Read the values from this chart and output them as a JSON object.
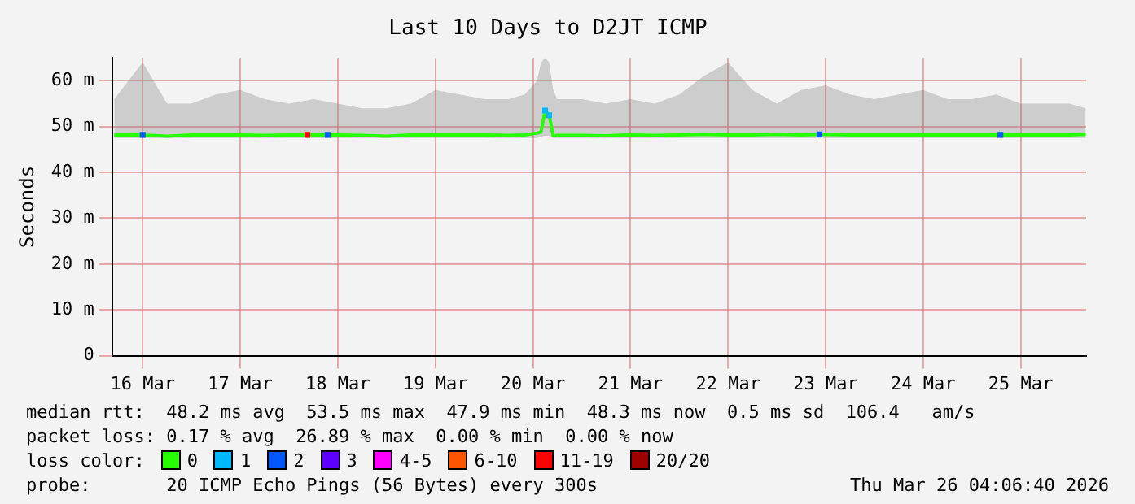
{
  "chart_data": {
    "type": "line",
    "title": "Last 10 Days to D2JT ICMP",
    "ylabel": "Seconds",
    "xlim": [
      "2026-03-16T04:30",
      "2026-03-26T04:06"
    ],
    "xticks": [
      {
        "value": "2026-03-16T12:00",
        "label": "16 Mar"
      },
      {
        "value": "2026-03-17T12:00",
        "label": "17 Mar"
      },
      {
        "value": "2026-03-18T12:00",
        "label": "18 Mar"
      },
      {
        "value": "2026-03-19T12:00",
        "label": "19 Mar"
      },
      {
        "value": "2026-03-20T12:00",
        "label": "20 Mar"
      },
      {
        "value": "2026-03-21T12:00",
        "label": "21 Mar"
      },
      {
        "value": "2026-03-22T12:00",
        "label": "22 Mar"
      },
      {
        "value": "2026-03-23T12:00",
        "label": "23 Mar"
      },
      {
        "value": "2026-03-24T12:00",
        "label": "24 Mar"
      },
      {
        "value": "2026-03-25T12:00",
        "label": "25 Mar"
      }
    ],
    "ylim": [
      0,
      65
    ],
    "yticks": [
      0,
      {
        "value": 10,
        "label": "10 m"
      },
      {
        "value": 20,
        "label": "20 m"
      },
      {
        "value": 30,
        "label": "30 m"
      },
      {
        "value": 40,
        "label": "40 m"
      },
      {
        "value": 50,
        "label": "50 m"
      },
      {
        "value": 60,
        "label": "60 m"
      }
    ],
    "grid": true,
    "legend": "bottom",
    "legend_title": "loss color:",
    "series": [
      {
        "name": "0",
        "color": "#26ff00",
        "marker": "none",
        "x": [
          "2026-03-16T05:00",
          "2026-03-16T12:00",
          "2026-03-16T18:00",
          "2026-03-17T00:00",
          "2026-03-17T06:00",
          "2026-03-17T12:00",
          "2026-03-17T18:00",
          "2026-03-18T00:00",
          "2026-03-18T06:00",
          "2026-03-18T12:00",
          "2026-03-18T18:00",
          "2026-03-19T00:00",
          "2026-03-19T06:00",
          "2026-03-19T12:00",
          "2026-03-19T18:00",
          "2026-03-20T00:00",
          "2026-03-20T06:00",
          "2026-03-20T10:00",
          "2026-03-20T13:00",
          "2026-03-20T14:00",
          "2026-03-20T15:00",
          "2026-03-20T16:00",
          "2026-03-20T17:00",
          "2026-03-20T18:00",
          "2026-03-21T00:00",
          "2026-03-21T06:00",
          "2026-03-21T12:00",
          "2026-03-21T18:00",
          "2026-03-22T00:00",
          "2026-03-22T06:00",
          "2026-03-22T12:00",
          "2026-03-22T18:00",
          "2026-03-23T00:00",
          "2026-03-23T06:00",
          "2026-03-23T12:00",
          "2026-03-23T18:00",
          "2026-03-24T00:00",
          "2026-03-24T06:00",
          "2026-03-24T12:00",
          "2026-03-24T18:00",
          "2026-03-25T00:00",
          "2026-03-25T06:00",
          "2026-03-25T12:00",
          "2026-03-25T18:00",
          "2026-03-26T00:00",
          "2026-03-26T04:00"
        ],
        "values": [
          48.2,
          48.2,
          47.9,
          48.2,
          48.2,
          48.2,
          48.1,
          48.2,
          48.2,
          48.2,
          48.1,
          47.9,
          48.2,
          48.2,
          48.2,
          48.2,
          48.1,
          48.2,
          48.6,
          48.8,
          53.5,
          52.5,
          48,
          48.1,
          48.1,
          48,
          48.2,
          48.1,
          48.2,
          48.3,
          48.2,
          48.2,
          48.3,
          48.2,
          48.3,
          48.2,
          48.2,
          48.2,
          48.2,
          48.2,
          48.2,
          48.2,
          48.2,
          48.2,
          48.2,
          48.3
        ],
        "lower": [
          47.5,
          47.5,
          47.5,
          47.5,
          47.5,
          47.5,
          47.5,
          47.5,
          47.5,
          47.5,
          47.5,
          47.5,
          47.5,
          47.5,
          47.5,
          47.5,
          47.5,
          47.5,
          47.5,
          47.8,
          48,
          48,
          47.5,
          47.5,
          47.5,
          47.5,
          47.5,
          47.5,
          47.5,
          47.5,
          47.5,
          47.5,
          47.5,
          47.5,
          47.5,
          47.5,
          47.5,
          47.5,
          47.5,
          47.5,
          47.5,
          47.5,
          47.5,
          47.5,
          47.5,
          47.5
        ],
        "upper": [
          56,
          64,
          55,
          55,
          57,
          58,
          56,
          55,
          56,
          55,
          54,
          54,
          55,
          58,
          57,
          56,
          56,
          57,
          60,
          64,
          65,
          64,
          58,
          56,
          56,
          55,
          56,
          55,
          57,
          61,
          64,
          58,
          55,
          58,
          59,
          57,
          56,
          57,
          58,
          56,
          56,
          57,
          55,
          55,
          55,
          54
        ]
      },
      {
        "name": "1",
        "color": "#00b8ff",
        "type": "scatter",
        "marker": "square",
        "x": [
          "2026-03-20T15:00",
          "2026-03-20T16:00"
        ],
        "values": [
          53.5,
          52.5
        ]
      },
      {
        "name": "2",
        "color": "#0059ff",
        "type": "scatter",
        "marker": "square",
        "x": [
          "2026-03-16T12:00",
          "2026-03-18T09:30",
          "2026-03-23T10:30",
          "2026-03-25T07:00"
        ],
        "values": [
          48.2,
          48.2,
          48.3,
          48.2
        ]
      },
      {
        "name": "3",
        "color": "#5e00ff",
        "type": "scatter",
        "marker": "square"
      },
      {
        "name": "4-5",
        "color": "#ff00ff",
        "type": "scatter",
        "marker": "square"
      },
      {
        "name": "6-10",
        "color": "#ff5500",
        "type": "scatter",
        "marker": "square"
      },
      {
        "name": "11-19",
        "color": "#ff0000",
        "type": "scatter",
        "marker": "square",
        "x": [
          "2026-03-18T04:30"
        ],
        "values": [
          48.2
        ]
      },
      {
        "name": "20/20",
        "color": "#a10000",
        "type": "scatter",
        "marker": "square"
      }
    ],
    "annotations": [
      "median rtt:  48.2 ms avg  53.5 ms max  47.9 ms min  48.3 ms now  0.5 ms sd  106.4   am/s",
      "packet loss: 0.17 % avg  26.89 % max  0.00 % min  0.00 % now",
      "probe:       20 ICMP Echo Pings (56 Bytes) every 300s",
      "Thu Mar 26 04:06:40 2026"
    ]
  }
}
